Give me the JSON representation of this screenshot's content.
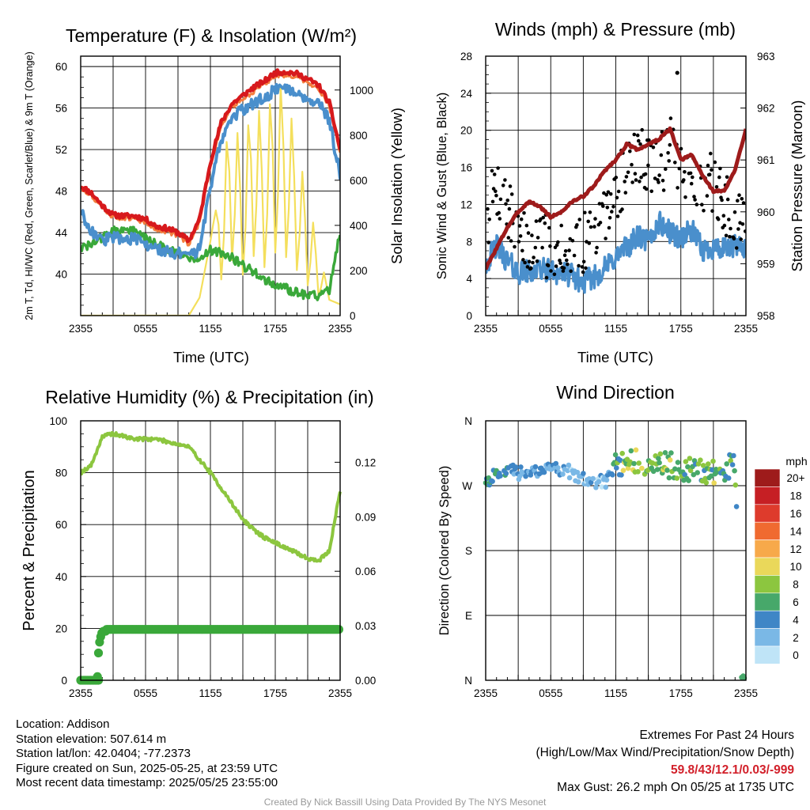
{
  "chart_data": [
    {
      "type": "line",
      "title": "Temperature (F) & Insolation (W/m²)",
      "xlabel": "Time (UTC)",
      "ylabel": "2m T, Td, HI/WC (Red, Green, Scarlet/Blue) & 9m T (Orange)",
      "ylabel_right": "Solar Insolation (Yellow)",
      "x_ticks": [
        "2355",
        "0555",
        "1155",
        "1755",
        "2355"
      ],
      "ylim": [
        36,
        61
      ],
      "yticks": [
        40,
        44,
        48,
        52,
        56,
        60
      ],
      "ylim_right": [
        0,
        1150
      ],
      "yticks_right": [
        0,
        200,
        400,
        600,
        800,
        1000
      ],
      "x_hours": [
        0,
        1,
        2,
        3,
        4,
        5,
        6,
        7,
        8,
        9,
        10,
        11,
        12,
        13,
        14,
        15,
        16,
        17,
        18,
        19,
        20,
        21,
        22,
        23,
        24
      ],
      "series": [
        {
          "label": "2m T",
          "color": "#d7191c",
          "axis": "left",
          "values": [
            48.5,
            47.8,
            46.6,
            45.7,
            45.6,
            45.6,
            45.3,
            44.6,
            44.4,
            44.0,
            43.2,
            45.3,
            50.8,
            54.6,
            56.4,
            57.2,
            58.0,
            58.6,
            59.4,
            59.5,
            59.3,
            58.8,
            58.2,
            56.5,
            52.0
          ]
        },
        {
          "label": "9m T",
          "color": "#f47e3e",
          "axis": "left",
          "values": [
            48.3,
            47.6,
            46.4,
            45.5,
            45.4,
            45.3,
            45.0,
            44.3,
            44.1,
            43.7,
            42.9,
            45.0,
            50.5,
            54.3,
            56.1,
            56.9,
            57.6,
            58.3,
            59.1,
            59.2,
            59.0,
            58.5,
            57.9,
            56.2,
            51.8
          ]
        },
        {
          "label": "HI/WC",
          "color": "#4a8fcc",
          "axis": "left",
          "values": [
            46.0,
            44.2,
            43.2,
            43.6,
            43.4,
            43.4,
            42.8,
            42.4,
            42.2,
            42.0,
            41.6,
            42.4,
            48.5,
            53.0,
            55.2,
            55.8,
            56.5,
            57.0,
            57.8,
            58.0,
            57.5,
            57.0,
            56.5,
            54.8,
            49.5
          ]
        },
        {
          "label": "Td",
          "color": "#3aa83a",
          "axis": "left",
          "values": [
            42.5,
            42.8,
            43.6,
            44.1,
            44.3,
            44.2,
            43.5,
            42.8,
            42.5,
            42.2,
            41.4,
            41.6,
            42.3,
            42.1,
            41.6,
            40.8,
            40.3,
            39.5,
            38.9,
            38.6,
            38.2,
            38.0,
            37.9,
            38.5,
            44.2
          ]
        },
        {
          "label": "Solar Insolation",
          "color": "#f4df5c",
          "axis": "right",
          "values": [
            0,
            0,
            0,
            0,
            0,
            0,
            0,
            0,
            0,
            0,
            0,
            80,
            330,
            620,
            950,
            700,
            1020,
            830,
            1080,
            1000,
            780,
            520,
            320,
            70,
            50
          ]
        }
      ]
    },
    {
      "type": "line",
      "title": "Winds (mph) & Pressure (mb)",
      "xlabel": "Time (UTC)",
      "ylabel": "Sonic Wind & Gust (Blue, Black)",
      "ylabel_right": "Station Pressure (Maroon)",
      "x_ticks": [
        "2355",
        "0555",
        "1155",
        "1755",
        "2355"
      ],
      "ylim": [
        0,
        28
      ],
      "yticks": [
        0,
        4,
        8,
        12,
        16,
        20,
        24,
        28
      ],
      "ylim_right": [
        958,
        963
      ],
      "yticks_right": [
        958,
        959,
        960,
        961,
        962,
        963
      ],
      "x_hours": [
        0,
        1,
        2,
        3,
        4,
        5,
        6,
        7,
        8,
        9,
        10,
        11,
        12,
        13,
        14,
        15,
        16,
        17,
        18,
        19,
        20,
        21,
        22,
        23,
        24
      ],
      "series": [
        {
          "label": "Sonic Wind",
          "color": "#4a8fcc",
          "axis": "left",
          "values": [
            5.6,
            7.5,
            5.9,
            4.7,
            4.7,
            5.0,
            4.8,
            4.6,
            4.3,
            3.5,
            4.2,
            5.1,
            6.3,
            7.4,
            8.5,
            8.0,
            10.0,
            9.0,
            8.4,
            9.2,
            7.0,
            7.4,
            7.0,
            7.4,
            7.5
          ]
        },
        {
          "label": "Gust",
          "color": "#000000",
          "axis": "left",
          "values": [
            10,
            14,
            11,
            9,
            7,
            8,
            7,
            8,
            6,
            8,
            9,
            10,
            13,
            16,
            17,
            17,
            16,
            18,
            15,
            16,
            14,
            14,
            12,
            10,
            12
          ]
        },
        {
          "label": "Station Pressure",
          "color": "#9e1b1b",
          "axis": "right",
          "values": [
            958.9,
            959.3,
            959.7,
            960.0,
            960.2,
            960.1,
            959.9,
            960.0,
            960.2,
            960.3,
            960.5,
            960.8,
            961.0,
            961.3,
            961.2,
            961.3,
            961.4,
            961.6,
            961.0,
            961.1,
            960.7,
            960.4,
            960.4,
            960.8,
            961.6
          ]
        }
      ],
      "max_gust": {
        "hour": 17.67,
        "value": 26.2
      }
    },
    {
      "type": "line",
      "title": "Relative Humidity (%) & Precipitation (in)",
      "xlabel": "",
      "ylabel": "Percent & Precipitation",
      "x_ticks": [
        "2355",
        "0555",
        "1155",
        "1755",
        "2355"
      ],
      "ylim": [
        0,
        100
      ],
      "yticks": [
        0,
        20,
        40,
        60,
        80,
        100
      ],
      "ylim_right": [
        0,
        0.1428
      ],
      "yticks_right": [
        "0.00",
        "0.03",
        "0.06",
        "0.09",
        "0.12"
      ],
      "x_hours": [
        0,
        1,
        2,
        3,
        4,
        5,
        6,
        7,
        8,
        9,
        10,
        11,
        12,
        13,
        14,
        15,
        16,
        17,
        18,
        19,
        20,
        21,
        22,
        23,
        24
      ],
      "series": [
        {
          "label": "Relative Humidity",
          "color": "#8cc63f",
          "axis": "left",
          "values": [
            80,
            83,
            94,
            95,
            94,
            93,
            93,
            93,
            92,
            91,
            90,
            85,
            80,
            74,
            68,
            62,
            58,
            55,
            53,
            51,
            49,
            47,
            46,
            50,
            73
          ]
        },
        {
          "label": "Precipitation",
          "color": "#3aa83a",
          "axis": "right",
          "values": [
            0,
            0,
            0.027,
            0.028,
            0.028,
            0.028,
            0.028,
            0.028,
            0.028,
            0.028,
            0.028,
            0.028,
            0.028,
            0.028,
            0.028,
            0.028,
            0.028,
            0.028,
            0.028,
            0.028,
            0.028,
            0.028,
            0.028,
            0.028,
            0.028
          ]
        }
      ]
    },
    {
      "type": "scatter",
      "title": "Wind Direction",
      "ylabel": "Direction (Colored By Speed)",
      "x_ticks": [
        "2355",
        "0555",
        "1155",
        "1755",
        "2355"
      ],
      "y_ticks": [
        "N",
        "E",
        "S",
        "W",
        "N"
      ],
      "ylim_deg": [
        0,
        360
      ],
      "x_hours": [
        0,
        1,
        2,
        3,
        4,
        5,
        6,
        7,
        8,
        9,
        10,
        11,
        12,
        13,
        14,
        15,
        16,
        17,
        18,
        19,
        20,
        21,
        22,
        23,
        23.8
      ],
      "direction_deg": [
        275,
        288,
        295,
        288,
        285,
        290,
        295,
        293,
        288,
        278,
        276,
        275,
        300,
        303,
        306,
        302,
        300,
        298,
        296,
        292,
        290,
        289,
        290,
        300,
        2
      ],
      "speed_mph": [
        5,
        6,
        5,
        4,
        4,
        5,
        4,
        4,
        3,
        3,
        3,
        3,
        7,
        9,
        8,
        8,
        8,
        10,
        7,
        8,
        7,
        8,
        6,
        7,
        7
      ],
      "colorbar_label": "mph",
      "colorbar_levels": [
        "20+",
        "18",
        "16",
        "14",
        "12",
        "10",
        "8",
        "6",
        "4",
        "2",
        "0"
      ],
      "colorbar_colors": [
        "#9e1b1b",
        "#c61f24",
        "#de3b2c",
        "#f06a30",
        "#f7a94a",
        "#ead85a",
        "#8cc63f",
        "#47a86a",
        "#3f86c6",
        "#7ab8e6",
        "#bfe4f7"
      ]
    }
  ],
  "footer": {
    "location": "Location: Addison",
    "elevation": "Station elevation: 507.614 m",
    "latlon": "Station lat/lon: 42.0404; -77.2373",
    "created": "Figure created on Sun, 2025-05-25, at 23:59 UTC",
    "recent": "Most recent data timestamp: 2025/05/25 23:55:00"
  },
  "extremes": {
    "title": "Extremes For Past 24 Hours",
    "subtitle": "(High/Low/Max Wind/Precipitation/Snow Depth)",
    "values": "59.8/43/12.1/0.03/-999",
    "max_gust": "Max Gust: 26.2 mph On 05/25 at 1735 UTC"
  },
  "credit": "Created By Nick Bassill Using Data Provided By The NYS Mesonet"
}
